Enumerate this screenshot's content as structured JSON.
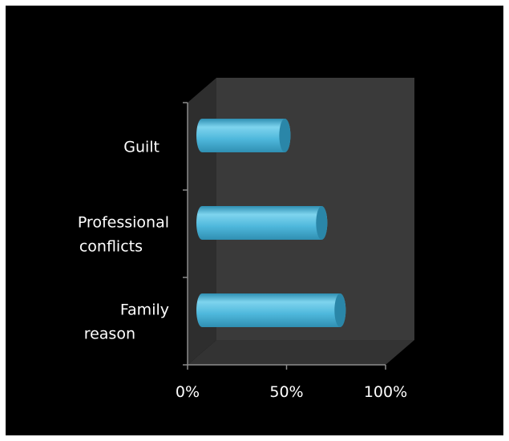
{
  "chart_data": {
    "type": "bar",
    "orientation": "horizontal",
    "style": "3d-cylinder",
    "title": "",
    "xlabel": "",
    "ylabel": "",
    "categories": [
      [
        "Guilt"
      ],
      [
        "Professional",
        "conflicts"
      ],
      [
        "Family",
        "reason"
      ]
    ],
    "values": [
      45,
      65,
      75
    ],
    "xlim": [
      0,
      100
    ],
    "x_ticks": [
      "0%",
      "50%",
      "100%"
    ],
    "legend": "none",
    "colors": {
      "background": "#000000",
      "plot_wall": "#3a3a3a",
      "side_wall": "#2e2e2e",
      "floor": "#333333",
      "bar_fill": "#4fb8dc",
      "bar_highlight": "#7ed4ee",
      "bar_shadow": "#2f8fb2",
      "bar_end": "#2a86a8",
      "axis": "#8c8c8c",
      "text": "#ffffff"
    }
  }
}
